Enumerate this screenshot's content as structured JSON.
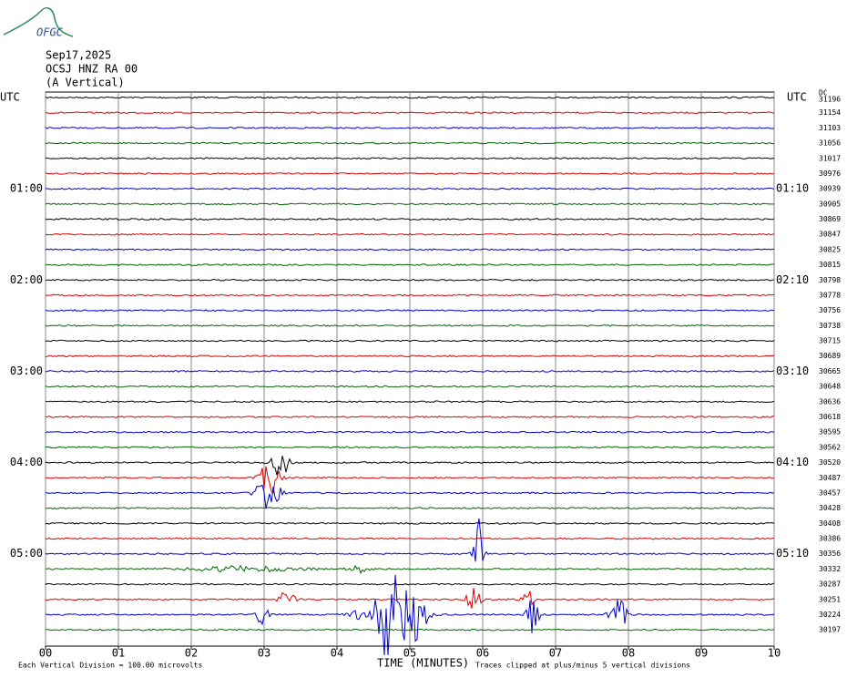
{
  "header": {
    "logo": "OFGC",
    "date": "Sep17,2025",
    "station": "OCSJ HNZ RA 00",
    "component": "(A Vertical)"
  },
  "left_labels": [
    "UTC",
    "01:00",
    "02:00",
    "03:00",
    "04:00",
    "05:00"
  ],
  "right_labels": [
    "UTC",
    "01:10",
    "02:10",
    "03:10",
    "04:10",
    "05:10"
  ],
  "dc_label": "DC",
  "trace_offsets": [
    "31196",
    "31154",
    "31103",
    "31056",
    "31017",
    "30976",
    "30939",
    "30905",
    "30869",
    "30847",
    "30825",
    "30815",
    "30798",
    "30778",
    "30756",
    "30738",
    "30715",
    "30689",
    "30665",
    "30648",
    "30636",
    "30618",
    "30595",
    "30562",
    "30520",
    "30487",
    "30457",
    "30428",
    "30408",
    "30386",
    "30356",
    "30332",
    "30287",
    "30251",
    "30224",
    "30197"
  ],
  "x_ticks": [
    "00",
    "01",
    "02",
    "03",
    "04",
    "05",
    "06",
    "07",
    "08",
    "09",
    "10"
  ],
  "x_label": "TIME (MINUTES)",
  "footer": {
    "scale": "Each Vertical Division =  100.00 microvolts",
    "clip": "Traces clipped at plus/minus 5 vertical divisions"
  }
}
